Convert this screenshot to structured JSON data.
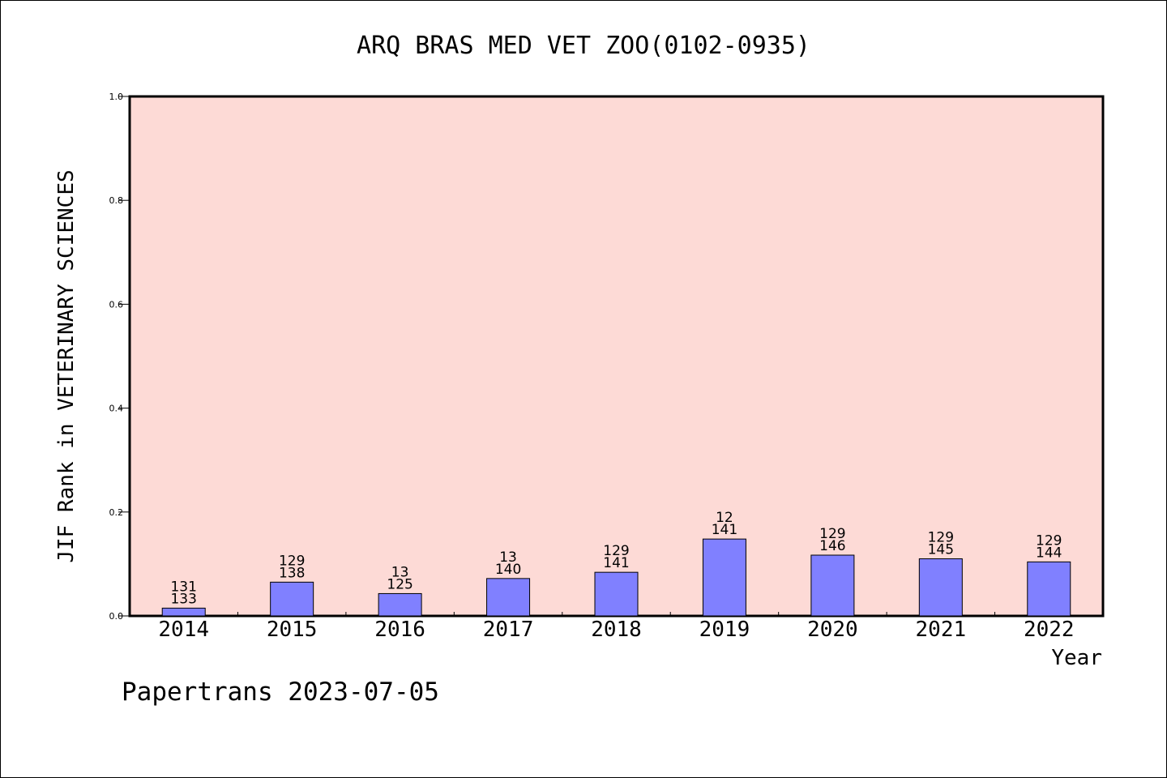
{
  "chart_data": {
    "type": "bar",
    "title": "ARQ BRAS MED VET ZOO(0102-0935)",
    "xlabel": "Year",
    "ylabel": "JIF Rank in VETERINARY SCIENCES",
    "footer": "Papertrans 2023-07-05",
    "ylim": [
      0,
      1.0
    ],
    "yticks": [
      "0.0",
      "0.2",
      "0.4",
      "0.6",
      "0.8",
      "1.0"
    ],
    "categories": [
      "2014",
      "2015",
      "2016",
      "2017",
      "2018",
      "2019",
      "2020",
      "2021",
      "2022"
    ],
    "values": [
      0.015,
      0.065,
      0.043,
      0.072,
      0.084,
      0.148,
      0.117,
      0.11,
      0.104
    ],
    "rank_labels": [
      {
        "top": "131",
        "bottom": "133"
      },
      {
        "top": "129",
        "bottom": "138"
      },
      {
        "top": "13",
        "bottom": "125"
      },
      {
        "top": "13",
        "bottom": "140"
      },
      {
        "top": "129",
        "bottom": "141"
      },
      {
        "top": "12",
        "bottom": "141"
      },
      {
        "top": "129",
        "bottom": "146"
      },
      {
        "top": "129",
        "bottom": "145"
      },
      {
        "top": "129",
        "bottom": "144"
      }
    ],
    "grid": false,
    "legend": "none",
    "colors": {
      "plot_background": "#fddad6",
      "bar_fill": "#8080ff",
      "bar_stroke": "#000000"
    }
  }
}
